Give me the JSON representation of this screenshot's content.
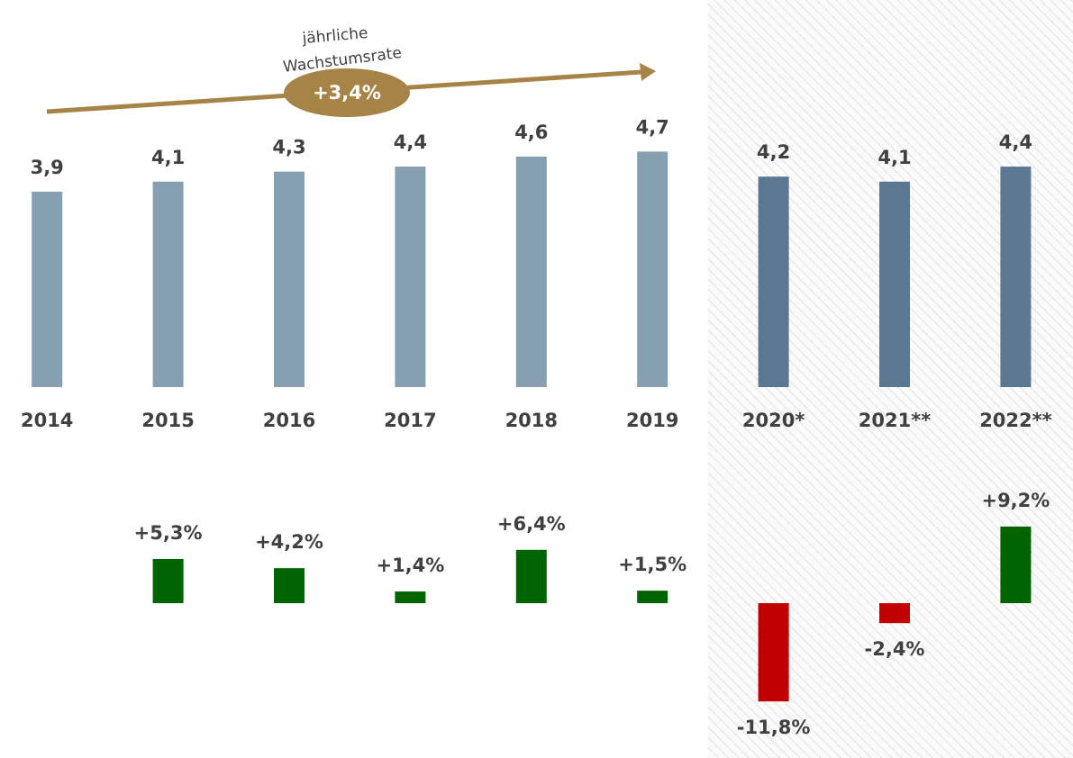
{
  "chart_data": [
    {
      "type": "bar",
      "categories": [
        "2014",
        "2015",
        "2016",
        "2017",
        "2018",
        "2019",
        "2020*",
        "2021**",
        "2022**"
      ],
      "values": [
        3.9,
        4.1,
        4.3,
        4.4,
        4.6,
        4.7,
        4.2,
        4.1,
        4.4
      ],
      "value_labels": [
        "3,9",
        "4,1",
        "4,3",
        "4,4",
        "4,6",
        "4,7",
        "4,2",
        "4,1",
        "4,4"
      ],
      "colors": [
        "#869fb1",
        "#869fb1",
        "#869fb1",
        "#869fb1",
        "#869fb1",
        "#869fb1",
        "#5b7893",
        "#5b7893",
        "#5b7893"
      ],
      "ylim": [
        0,
        6
      ],
      "annotation": {
        "text": [
          "jährliche",
          "Wachstumsrate"
        ],
        "value": 3.4,
        "label": "+3,4%",
        "color": "#a68447"
      }
    },
    {
      "type": "bar",
      "values": [
        null,
        5.3,
        4.2,
        1.4,
        6.4,
        1.5,
        -11.8,
        -2.4,
        9.2
      ],
      "value_labels": [
        null,
        "+5,3%",
        "+4,2%",
        "+1,4%",
        "+6,4%",
        "+1,5%",
        "-11,8%",
        "-2,4%",
        "+9,2%"
      ],
      "positive_color": "#006400",
      "negative_color": "#c00000",
      "ylim": [
        -14,
        14
      ]
    }
  ]
}
